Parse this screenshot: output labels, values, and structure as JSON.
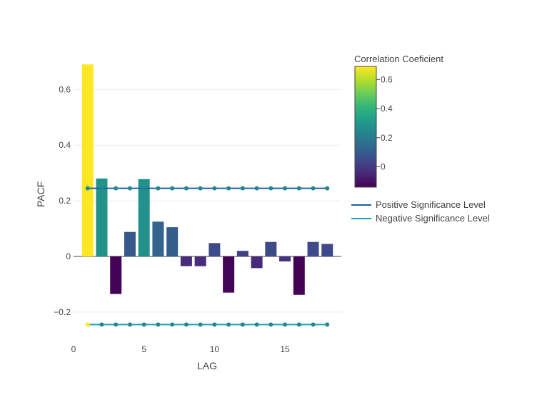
{
  "chart_data": {
    "type": "bar",
    "xlabel": "LAG",
    "ylabel": "PACF",
    "xlim": [
      0,
      19
    ],
    "ylim": [
      -0.3,
      0.7
    ],
    "x_ticks": [
      0,
      5,
      10,
      15
    ],
    "y_ticks": [
      -0.2,
      0,
      0.2,
      0.4,
      0.6
    ],
    "y_tick_labels": [
      "−0.2",
      "0",
      "0.2",
      "0.4",
      "0.6"
    ],
    "x_tick_labels": [
      "0",
      "5",
      "10",
      "15"
    ],
    "grid": true,
    "bars": {
      "lags": [
        1,
        2,
        3,
        4,
        5,
        6,
        7,
        8,
        9,
        10,
        11,
        12,
        13,
        14,
        15,
        16,
        17,
        18
      ],
      "values": [
        0.69,
        0.28,
        -0.135,
        0.088,
        0.278,
        0.125,
        0.105,
        -0.035,
        -0.035,
        0.048,
        -0.13,
        0.02,
        -0.042,
        0.052,
        -0.018,
        -0.138,
        0.052,
        0.045
      ]
    },
    "series": [
      {
        "name": "Positive Significance Level",
        "color": "#1f5fa0",
        "x": [
          1,
          2,
          3,
          4,
          5,
          6,
          7,
          8,
          9,
          10,
          11,
          12,
          13,
          14,
          15,
          16,
          17,
          18
        ],
        "value": 0.245
      },
      {
        "name": "Negative Significance Level",
        "color": "#17a2b8",
        "x": [
          1,
          2,
          3,
          4,
          5,
          6,
          7,
          8,
          9,
          10,
          11,
          12,
          13,
          14,
          15,
          16,
          17,
          18
        ],
        "value": -0.245
      }
    ],
    "colorbar": {
      "title": "Correlation Coeficient",
      "range": [
        -0.14,
        0.69
      ],
      "ticks": [
        0,
        0.2,
        0.4,
        0.6
      ],
      "tick_labels": [
        "0",
        "0.2",
        "0.4",
        "0.6"
      ],
      "colorscale": "viridis"
    },
    "legend_position": "right"
  }
}
